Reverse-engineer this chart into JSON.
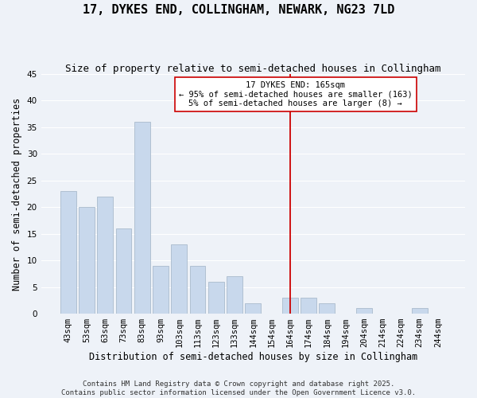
{
  "title": "17, DYKES END, COLLINGHAM, NEWARK, NG23 7LD",
  "subtitle": "Size of property relative to semi-detached houses in Collingham",
  "xlabel": "Distribution of semi-detached houses by size in Collingham",
  "ylabel": "Number of semi-detached properties",
  "bar_labels": [
    "43sqm",
    "53sqm",
    "63sqm",
    "73sqm",
    "83sqm",
    "93sqm",
    "103sqm",
    "113sqm",
    "123sqm",
    "133sqm",
    "144sqm",
    "154sqm",
    "164sqm",
    "174sqm",
    "184sqm",
    "194sqm",
    "204sqm",
    "214sqm",
    "224sqm",
    "234sqm",
    "244sqm"
  ],
  "bar_values": [
    23,
    20,
    22,
    16,
    36,
    9,
    13,
    9,
    6,
    7,
    2,
    0,
    3,
    3,
    2,
    0,
    1,
    0,
    0,
    1,
    0
  ],
  "bar_color": "#c8d8ec",
  "bar_edge_color": "#aabbcc",
  "ylim": [
    0,
    45
  ],
  "yticks": [
    0,
    5,
    10,
    15,
    20,
    25,
    30,
    35,
    40,
    45
  ],
  "vline_index": 12,
  "vline_color": "#cc0000",
  "annotation_title": "17 DYKES END: 165sqm",
  "annotation_line1": "← 95% of semi-detached houses are smaller (163)",
  "annotation_line2": "5% of semi-detached houses are larger (8) →",
  "annotation_box_facecolor": "#ffffff",
  "annotation_box_edgecolor": "#cc0000",
  "footer_line1": "Contains HM Land Registry data © Crown copyright and database right 2025.",
  "footer_line2": "Contains public sector information licensed under the Open Government Licence v3.0.",
  "bg_color": "#eef2f8",
  "grid_color": "#ffffff",
  "title_fontsize": 11,
  "subtitle_fontsize": 9,
  "axis_label_fontsize": 8.5,
  "tick_fontsize": 7.5,
  "annotation_fontsize": 7.5,
  "footer_fontsize": 6.5
}
